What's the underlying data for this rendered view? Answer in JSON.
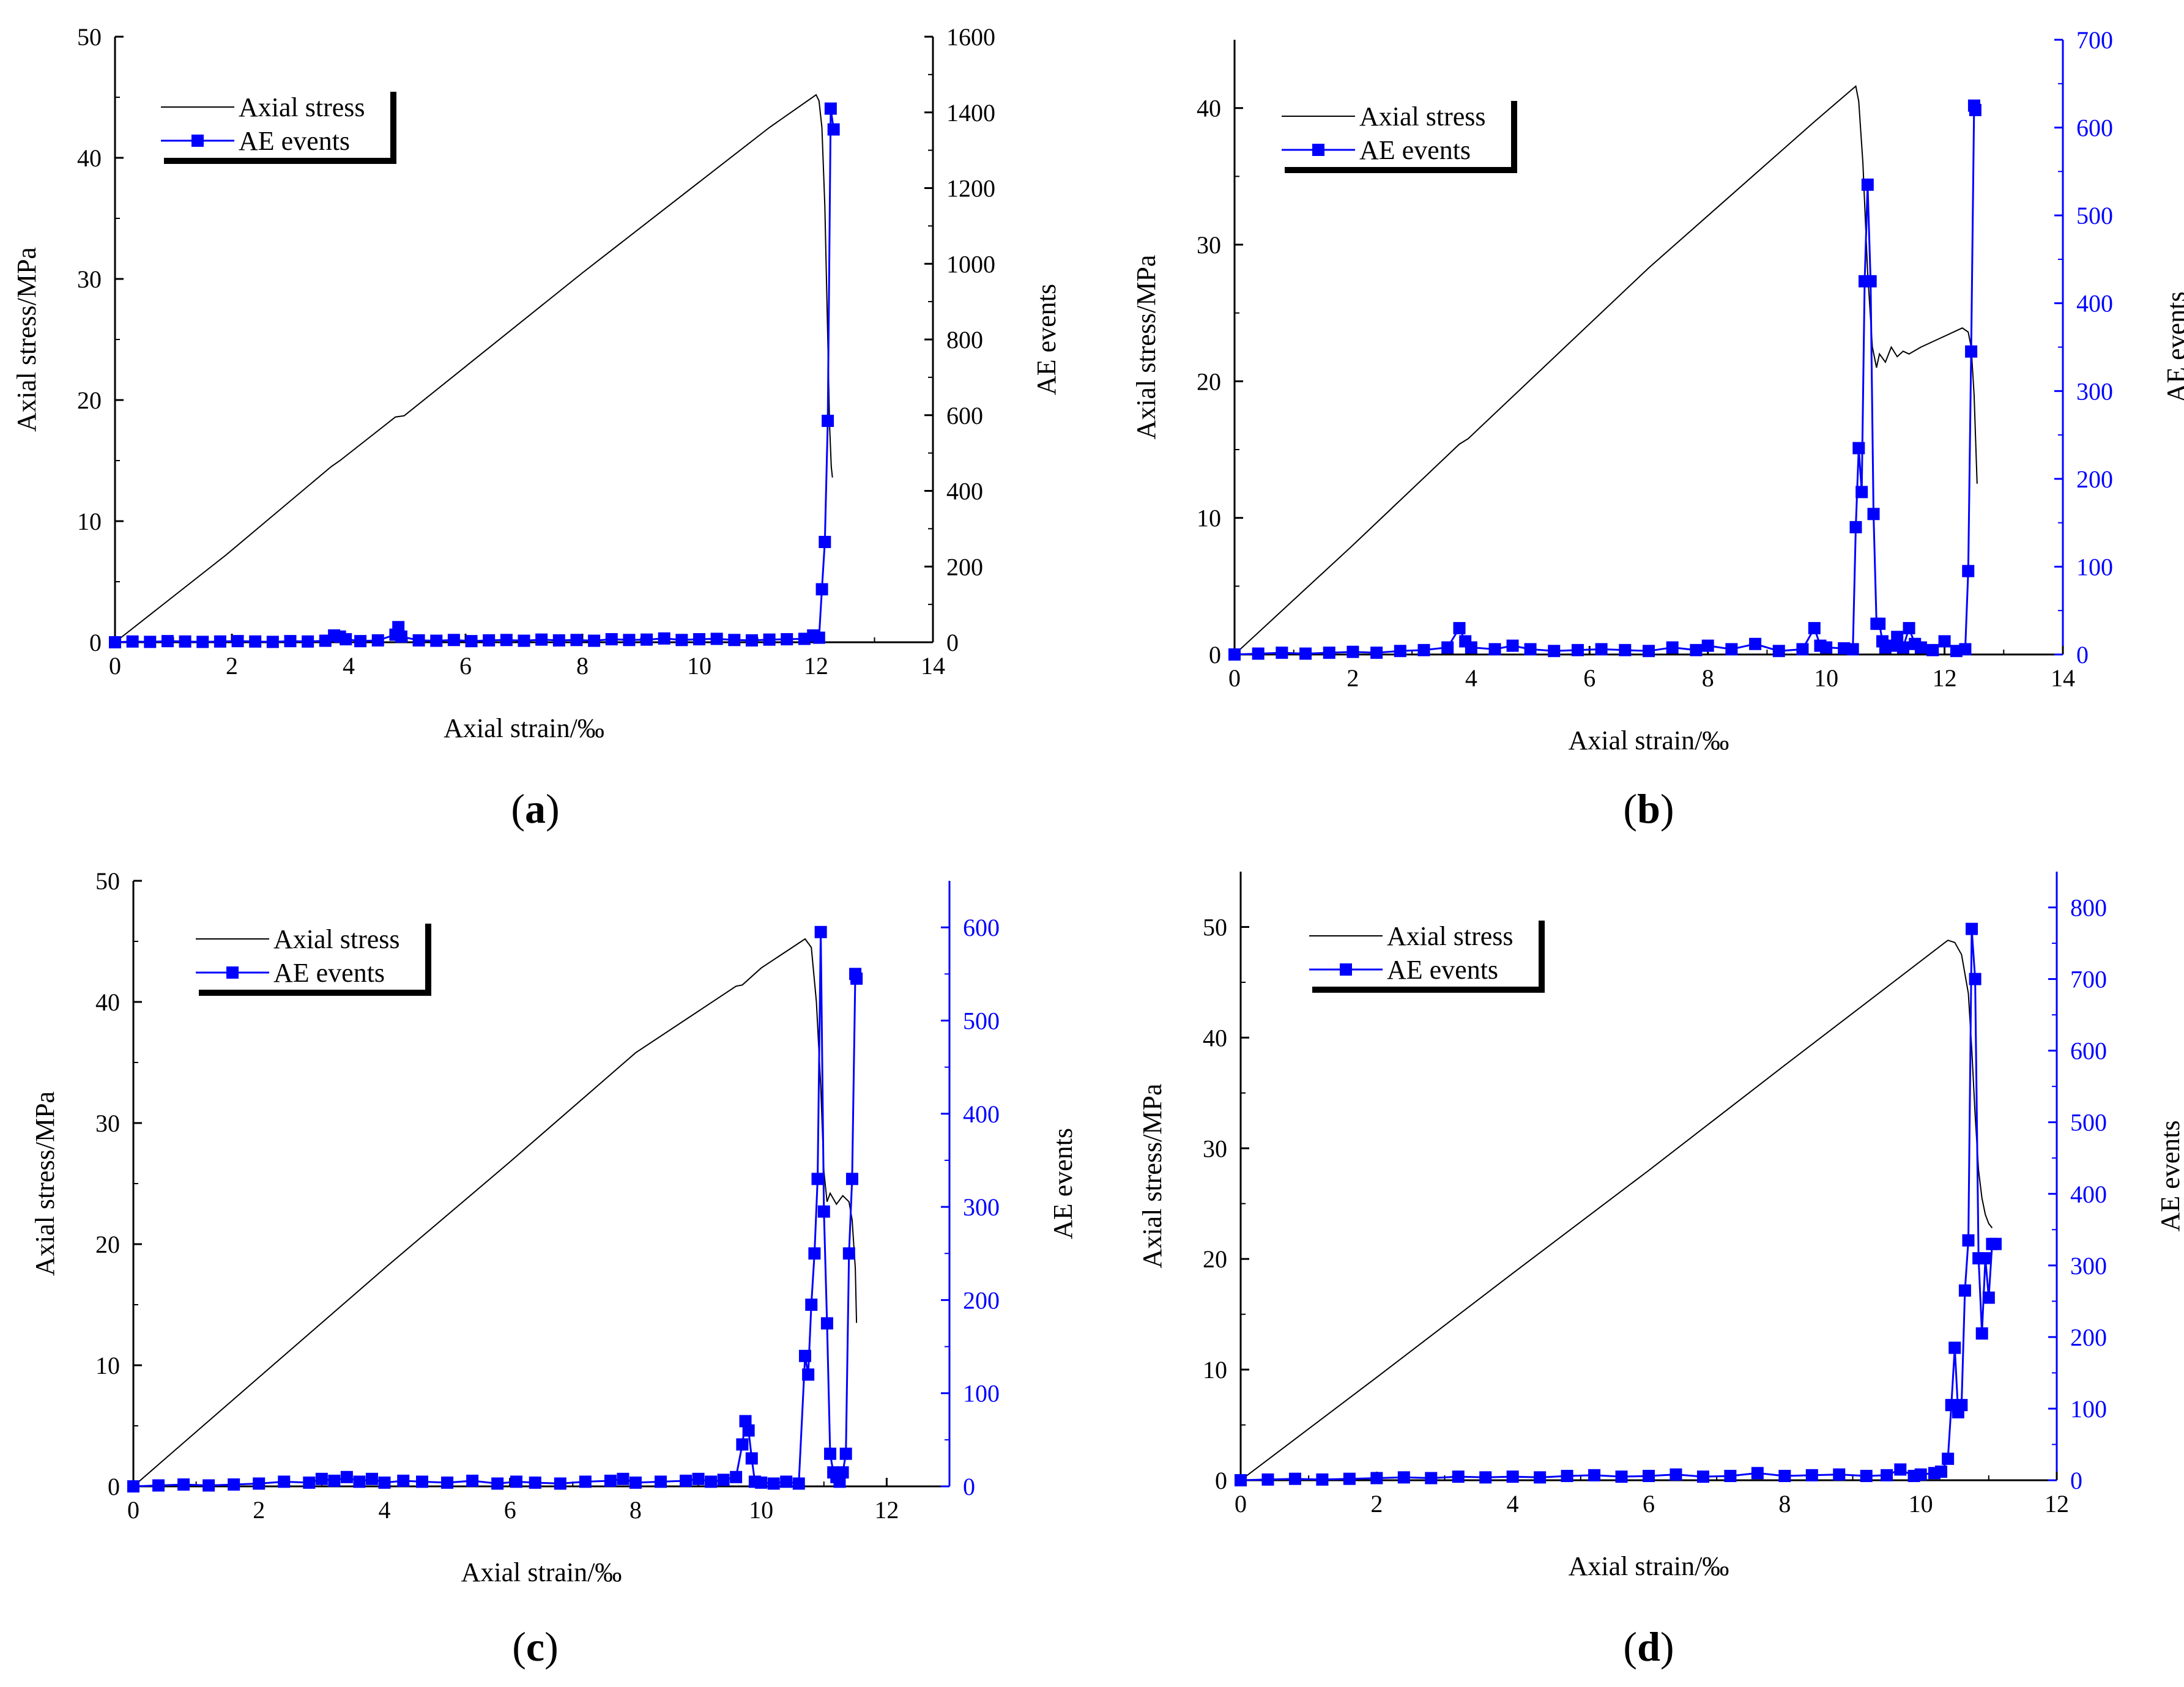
{
  "colors": {
    "stress": "#000000",
    "ae": "#0000ff",
    "axis": "#000000"
  },
  "chart_data": [
    {
      "type": "line",
      "panel": "(a)",
      "panel_letter": "a",
      "xlabel": "Axial strain/‰",
      "ylabel": "Axial stress/MPa",
      "y2label": "AE events",
      "xlim": [
        0,
        14
      ],
      "ylim": [
        0,
        50
      ],
      "y2lim": [
        0,
        1600
      ],
      "xticks": [
        0,
        2,
        4,
        6,
        8,
        10,
        12,
        14
      ],
      "yticks": [
        0,
        10,
        20,
        30,
        40,
        50
      ],
      "y2ticks": [
        0,
        200,
        400,
        600,
        800,
        1000,
        1200,
        1400,
        1600
      ],
      "right_axis_color": "#000000",
      "legend": [
        "Axial stress",
        "AE events"
      ],
      "series": [
        {
          "name": "Axial stress",
          "axis": "left",
          "x": [
            0,
            1.9,
            3.7,
            3.85,
            4.8,
            4.95,
            8,
            11.2,
            12.0,
            12.05,
            12.1,
            12.15,
            12.2,
            12.23,
            12.26,
            12.28
          ],
          "y": [
            0,
            7.2,
            14.5,
            15.0,
            18.6,
            18.7,
            30.5,
            42.5,
            45.2,
            44.7,
            42.5,
            36.0,
            25.0,
            18.0,
            14.5,
            13.6
          ]
        },
        {
          "name": "AE events",
          "axis": "right",
          "x": [
            0,
            0.3,
            0.6,
            0.9,
            1.2,
            1.5,
            1.8,
            2.1,
            2.4,
            2.7,
            3.0,
            3.3,
            3.6,
            3.75,
            3.85,
            3.95,
            4.2,
            4.5,
            4.8,
            4.85,
            4.9,
            5.2,
            5.5,
            5.8,
            6.1,
            6.4,
            6.7,
            7.0,
            7.3,
            7.6,
            7.9,
            8.2,
            8.5,
            8.8,
            9.1,
            9.4,
            9.7,
            10.0,
            10.3,
            10.6,
            10.9,
            11.2,
            11.5,
            11.8,
            11.95,
            12.05,
            12.1,
            12.15,
            12.2,
            12.25,
            12.3
          ],
          "y": [
            0,
            2,
            1,
            3,
            2,
            1,
            2,
            3,
            2,
            1,
            3,
            2,
            4,
            18,
            15,
            8,
            3,
            5,
            20,
            40,
            15,
            5,
            4,
            6,
            3,
            5,
            6,
            4,
            7,
            5,
            6,
            4,
            8,
            6,
            7,
            10,
            6,
            8,
            9,
            6,
            5,
            7,
            8,
            9,
            18,
            12,
            140,
            265,
            585,
            1410,
            1355
          ]
        }
      ]
    },
    {
      "type": "line",
      "panel": "(b)",
      "panel_letter": "b",
      "xlabel": "Axial strain/‰",
      "ylabel": "Axial stress/MPa",
      "y2label": "AE events",
      "xlim": [
        0,
        14
      ],
      "ylim": [
        0,
        45
      ],
      "y2lim": [
        0,
        700
      ],
      "xticks": [
        0,
        2,
        4,
        6,
        8,
        10,
        12,
        14
      ],
      "yticks": [
        0,
        10,
        20,
        30,
        40
      ],
      "y2ticks": [
        0,
        100,
        200,
        300,
        400,
        500,
        600,
        700
      ],
      "right_axis_color": "#0000ff",
      "legend": [
        "Axial stress",
        "AE events"
      ],
      "series": [
        {
          "name": "Axial stress",
          "axis": "left",
          "x": [
            0,
            2,
            3.8,
            3.95,
            7,
            9.8,
            10.5,
            10.55,
            10.62,
            10.7,
            10.78,
            10.85,
            10.9,
            11.0,
            11.1,
            11.2,
            11.3,
            11.4,
            11.6,
            12.0,
            12.3,
            12.4,
            12.45,
            12.5,
            12.55
          ],
          "y": [
            0,
            8.0,
            15.4,
            15.8,
            28.3,
            39.0,
            41.6,
            40.5,
            36.0,
            28.0,
            22.5,
            21.0,
            22.0,
            21.4,
            22.5,
            21.8,
            22.2,
            22.0,
            22.5,
            23.3,
            23.9,
            23.6,
            22.5,
            19.0,
            12.5
          ]
        },
        {
          "name": "AE events",
          "axis": "right",
          "x": [
            0,
            0.4,
            0.8,
            1.2,
            1.6,
            2.0,
            2.4,
            2.8,
            3.2,
            3.6,
            3.8,
            3.9,
            4.0,
            4.4,
            4.7,
            5.0,
            5.4,
            5.8,
            6.2,
            6.6,
            7.0,
            7.4,
            7.8,
            8.0,
            8.4,
            8.8,
            9.2,
            9.6,
            9.8,
            9.9,
            10.0,
            10.3,
            10.45,
            10.5,
            10.55,
            10.6,
            10.65,
            10.7,
            10.75,
            10.8,
            10.85,
            10.9,
            10.95,
            11.0,
            11.1,
            11.2,
            11.3,
            11.4,
            11.5,
            11.6,
            11.8,
            12.0,
            12.2,
            12.35,
            12.4,
            12.45,
            12.5,
            12.52
          ],
          "y": [
            0,
            1,
            2,
            1,
            2,
            3,
            2,
            4,
            5,
            8,
            30,
            15,
            8,
            6,
            10,
            6,
            4,
            5,
            6,
            5,
            4,
            8,
            5,
            10,
            6,
            12,
            4,
            6,
            30,
            10,
            8,
            7,
            6,
            145,
            235,
            185,
            425,
            535,
            425,
            160,
            35,
            35,
            15,
            8,
            10,
            20,
            8,
            30,
            12,
            8,
            5,
            15,
            4,
            6,
            95,
            345,
            625,
            620
          ]
        }
      ]
    },
    {
      "type": "line",
      "panel": "(c)",
      "panel_letter": "c",
      "xlabel": "Axial strain/‰",
      "ylabel": "Axial stress/MPa",
      "y2label": "AE events",
      "xlim": [
        0,
        13
      ],
      "ylim": [
        0,
        50
      ],
      "y2lim": [
        0,
        650
      ],
      "xticks": [
        0,
        2,
        4,
        6,
        8,
        10,
        12
      ],
      "yticks": [
        0,
        10,
        20,
        30,
        40,
        50
      ],
      "y2ticks": [
        0,
        100,
        200,
        300,
        400,
        500,
        600
      ],
      "right_axis_color": "#0000ff",
      "legend": [
        "Axial stress",
        "AE events"
      ],
      "series": [
        {
          "name": "Axial stress",
          "axis": "left",
          "x": [
            0,
            2,
            4,
            6,
            8,
            9.6,
            9.7,
            10.0,
            10.7,
            10.8,
            10.88,
            10.95,
            11.0,
            11.05,
            11.1,
            11.2,
            11.3,
            11.4,
            11.45,
            11.5,
            11.52
          ],
          "y": [
            0,
            9.0,
            18.0,
            26.8,
            35.8,
            41.3,
            41.4,
            42.8,
            45.2,
            44.5,
            40.0,
            33.0,
            26.0,
            23.5,
            24.2,
            23.3,
            24.0,
            23.5,
            22.0,
            18.0,
            13.5
          ]
        },
        {
          "name": "AE events",
          "axis": "right",
          "x": [
            0,
            0.4,
            0.8,
            1.2,
            1.6,
            2.0,
            2.4,
            2.8,
            3.0,
            3.2,
            3.4,
            3.6,
            3.8,
            4.0,
            4.3,
            4.6,
            5.0,
            5.4,
            5.8,
            6.1,
            6.4,
            6.8,
            7.2,
            7.6,
            7.8,
            8.0,
            8.4,
            8.8,
            9.0,
            9.2,
            9.4,
            9.6,
            9.7,
            9.75,
            9.8,
            9.85,
            9.9,
            10.0,
            10.2,
            10.4,
            10.6,
            10.7,
            10.75,
            10.8,
            10.85,
            10.9,
            10.95,
            11.0,
            11.05,
            11.1,
            11.15,
            11.2,
            11.25,
            11.3,
            11.35,
            11.4,
            11.45,
            11.5,
            11.52
          ],
          "y": [
            0,
            1,
            2,
            1,
            2,
            3,
            5,
            4,
            8,
            6,
            10,
            5,
            8,
            4,
            6,
            5,
            4,
            6,
            3,
            5,
            4,
            3,
            5,
            6,
            8,
            4,
            5,
            6,
            8,
            5,
            7,
            10,
            45,
            70,
            60,
            30,
            5,
            4,
            3,
            5,
            3,
            140,
            120,
            195,
            250,
            330,
            595,
            295,
            175,
            35,
            15,
            10,
            5,
            15,
            35,
            250,
            330,
            550,
            545
          ]
        }
      ]
    },
    {
      "type": "line",
      "panel": "(d)",
      "panel_letter": "d",
      "xlabel": "Axial strain/‰",
      "ylabel": "Axial stress/MPa",
      "y2label": "AE events",
      "xlim": [
        0,
        12
      ],
      "ylim": [
        0,
        55
      ],
      "y2lim": [
        0,
        850
      ],
      "xticks": [
        0,
        2,
        4,
        6,
        8,
        10,
        12
      ],
      "yticks": [
        0,
        10,
        20,
        30,
        40,
        50
      ],
      "y2ticks": [
        0,
        100,
        200,
        300,
        400,
        500,
        600,
        700,
        800
      ],
      "right_axis_color": "#0000ff",
      "legend": [
        "Axial stress",
        "AE events"
      ],
      "series": [
        {
          "name": "Axial stress",
          "axis": "left",
          "x": [
            0,
            2,
            4,
            6,
            8,
            10.4,
            10.5,
            10.6,
            10.7,
            10.75,
            10.8,
            10.85,
            10.9,
            10.95,
            11.0,
            11.05
          ],
          "y": [
            0,
            9.3,
            18.7,
            28.0,
            37.5,
            48.8,
            48.6,
            47.5,
            44.0,
            39.0,
            33.0,
            28.0,
            25.5,
            24.0,
            23.2,
            22.8
          ]
        },
        {
          "name": "AE events",
          "axis": "right",
          "x": [
            0,
            0.4,
            0.8,
            1.2,
            1.6,
            2.0,
            2.4,
            2.8,
            3.2,
            3.6,
            4.0,
            4.4,
            4.8,
            5.2,
            5.6,
            6.0,
            6.4,
            6.8,
            7.2,
            7.6,
            8.0,
            8.4,
            8.8,
            9.2,
            9.5,
            9.7,
            9.9,
            10.0,
            10.2,
            10.3,
            10.4,
            10.45,
            10.5,
            10.55,
            10.6,
            10.65,
            10.7,
            10.75,
            10.8,
            10.85,
            10.9,
            10.95,
            11.0,
            11.05,
            11.1
          ],
          "y": [
            0,
            1,
            2,
            1,
            2,
            3,
            4,
            3,
            5,
            4,
            5,
            4,
            6,
            7,
            5,
            6,
            8,
            5,
            6,
            10,
            6,
            7,
            8,
            6,
            7,
            15,
            6,
            8,
            10,
            12,
            30,
            105,
            185,
            95,
            105,
            265,
            335,
            770,
            700,
            310,
            205,
            310,
            255,
            330,
            330
          ]
        }
      ]
    }
  ]
}
